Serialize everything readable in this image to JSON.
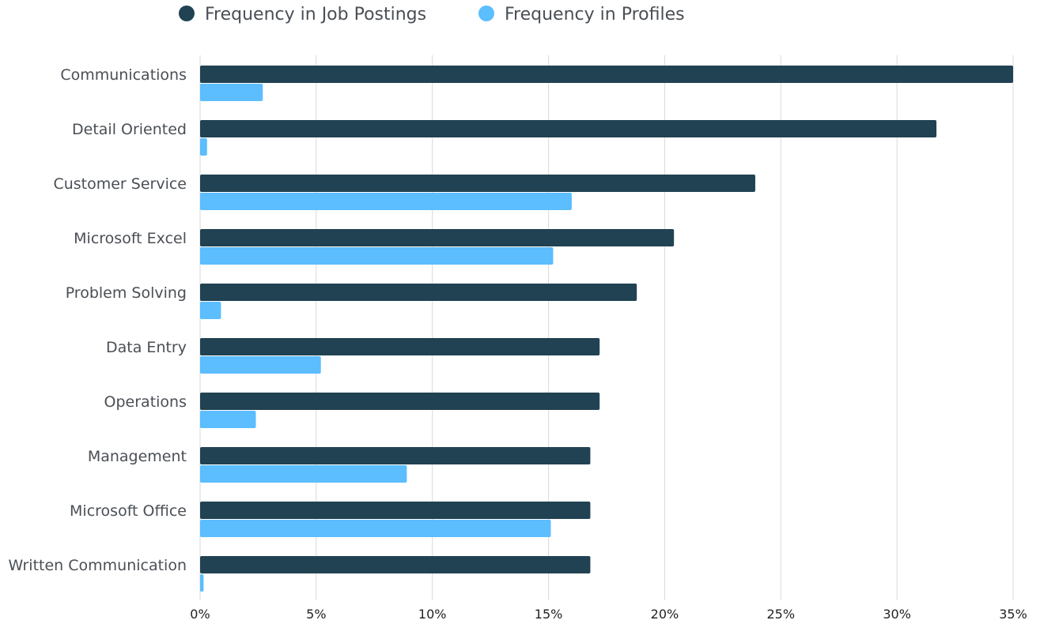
{
  "chart_data": {
    "type": "bar",
    "orientation": "horizontal",
    "legend_position": "top",
    "grid": true,
    "categories": [
      "Communications",
      "Detail Oriented",
      "Customer Service",
      "Microsoft Excel",
      "Problem Solving",
      "Data Entry",
      "Operations",
      "Management",
      "Microsoft Office",
      "Written Communication"
    ],
    "series": [
      {
        "name": "Frequency in Job Postings",
        "color": "#214252",
        "values": [
          35.0,
          31.7,
          23.9,
          20.4,
          18.8,
          17.2,
          17.2,
          16.8,
          16.8,
          16.8
        ]
      },
      {
        "name": "Frequency in Profiles",
        "color": "#5cbdff",
        "values": [
          2.7,
          0.3,
          16.0,
          15.2,
          0.9,
          5.2,
          2.4,
          8.9,
          15.1,
          0.15
        ]
      }
    ],
    "xlim": [
      0,
      35
    ],
    "x_ticks": [
      "0%",
      "5%",
      "10%",
      "15%",
      "20%",
      "25%",
      "30%",
      "35%"
    ],
    "x_tick_values": [
      0,
      5,
      10,
      15,
      20,
      25,
      30,
      35
    ]
  }
}
